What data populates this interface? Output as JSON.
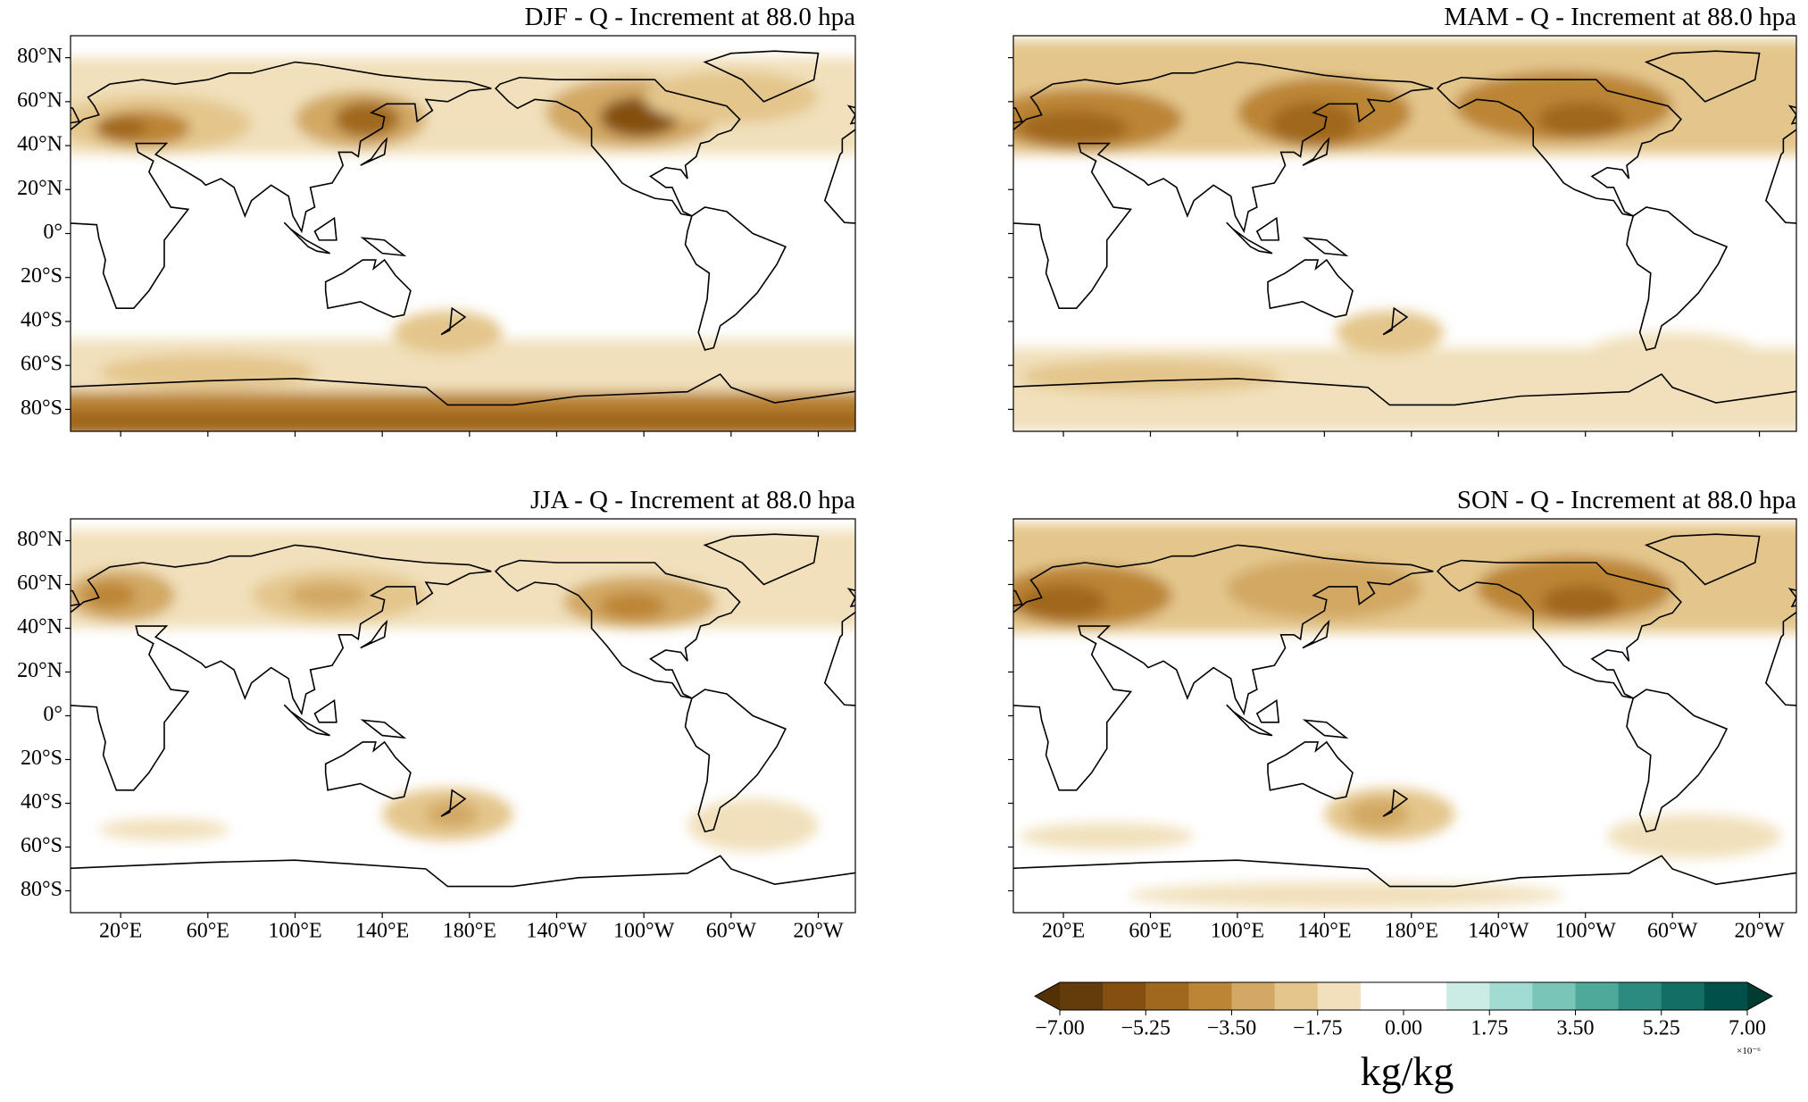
{
  "chart_data": {
    "type": "map",
    "extent": {
      "lon": [
        -3,
        357
      ],
      "lat": [
        -90,
        90
      ]
    },
    "panels": [
      {
        "title": "DJF - Q - Increment at 88.0 hpa"
      },
      {
        "title": "MAM - Q - Increment at 88.0 hpa"
      },
      {
        "title": "JJA - Q - Increment at 88.0 hpa"
      },
      {
        "title": "SON - Q - Increment at 88.0 hpa"
      }
    ],
    "lat_ticks": [
      {
        "value": 80,
        "label": "80°N"
      },
      {
        "value": 60,
        "label": "60°N"
      },
      {
        "value": 40,
        "label": "40°N"
      },
      {
        "value": 20,
        "label": "20°N"
      },
      {
        "value": 0,
        "label": "0°"
      },
      {
        "value": -20,
        "label": "20°S"
      },
      {
        "value": -40,
        "label": "40°S"
      },
      {
        "value": -60,
        "label": "60°S"
      },
      {
        "value": -80,
        "label": "80°S"
      }
    ],
    "lon_ticks": [
      {
        "value": 20,
        "label": "20°E"
      },
      {
        "value": 60,
        "label": "60°E"
      },
      {
        "value": 100,
        "label": "100°E"
      },
      {
        "value": 140,
        "label": "140°E"
      },
      {
        "value": 180,
        "label": "180°E"
      },
      {
        "value": -140,
        "label": "140°W"
      },
      {
        "value": -100,
        "label": "100°W"
      },
      {
        "value": -60,
        "label": "60°W"
      },
      {
        "value": -20,
        "label": "20°W"
      }
    ],
    "colorbar": {
      "label": "kg/kg",
      "multiplier": "×10⁻⁶",
      "lim": [
        -7,
        7
      ],
      "ticks": [
        {
          "value": -7,
          "label": "−7.00"
        },
        {
          "value": -5.25,
          "label": "−5.25"
        },
        {
          "value": -3.5,
          "label": "−3.50"
        },
        {
          "value": -1.75,
          "label": "−1.75"
        },
        {
          "value": 0,
          "label": "0.00"
        },
        {
          "value": 1.75,
          "label": "1.75"
        },
        {
          "value": 3.5,
          "label": "3.50"
        },
        {
          "value": 5.25,
          "label": "5.25"
        },
        {
          "value": 7,
          "label": "7.00"
        }
      ],
      "colors": [
        "#643b0b",
        "#84500f",
        "#a0681e",
        "#bc8535",
        "#d2a864",
        "#e4c68c",
        "#f1e0bb",
        "#ffffff",
        "#ffffff",
        "#cbebe5",
        "#a2dbd1",
        "#79c6b8",
        "#4ea99b",
        "#2b8b80",
        "#136e65",
        "#01514a"
      ],
      "under": "#543005",
      "over": "#003c30"
    }
  }
}
